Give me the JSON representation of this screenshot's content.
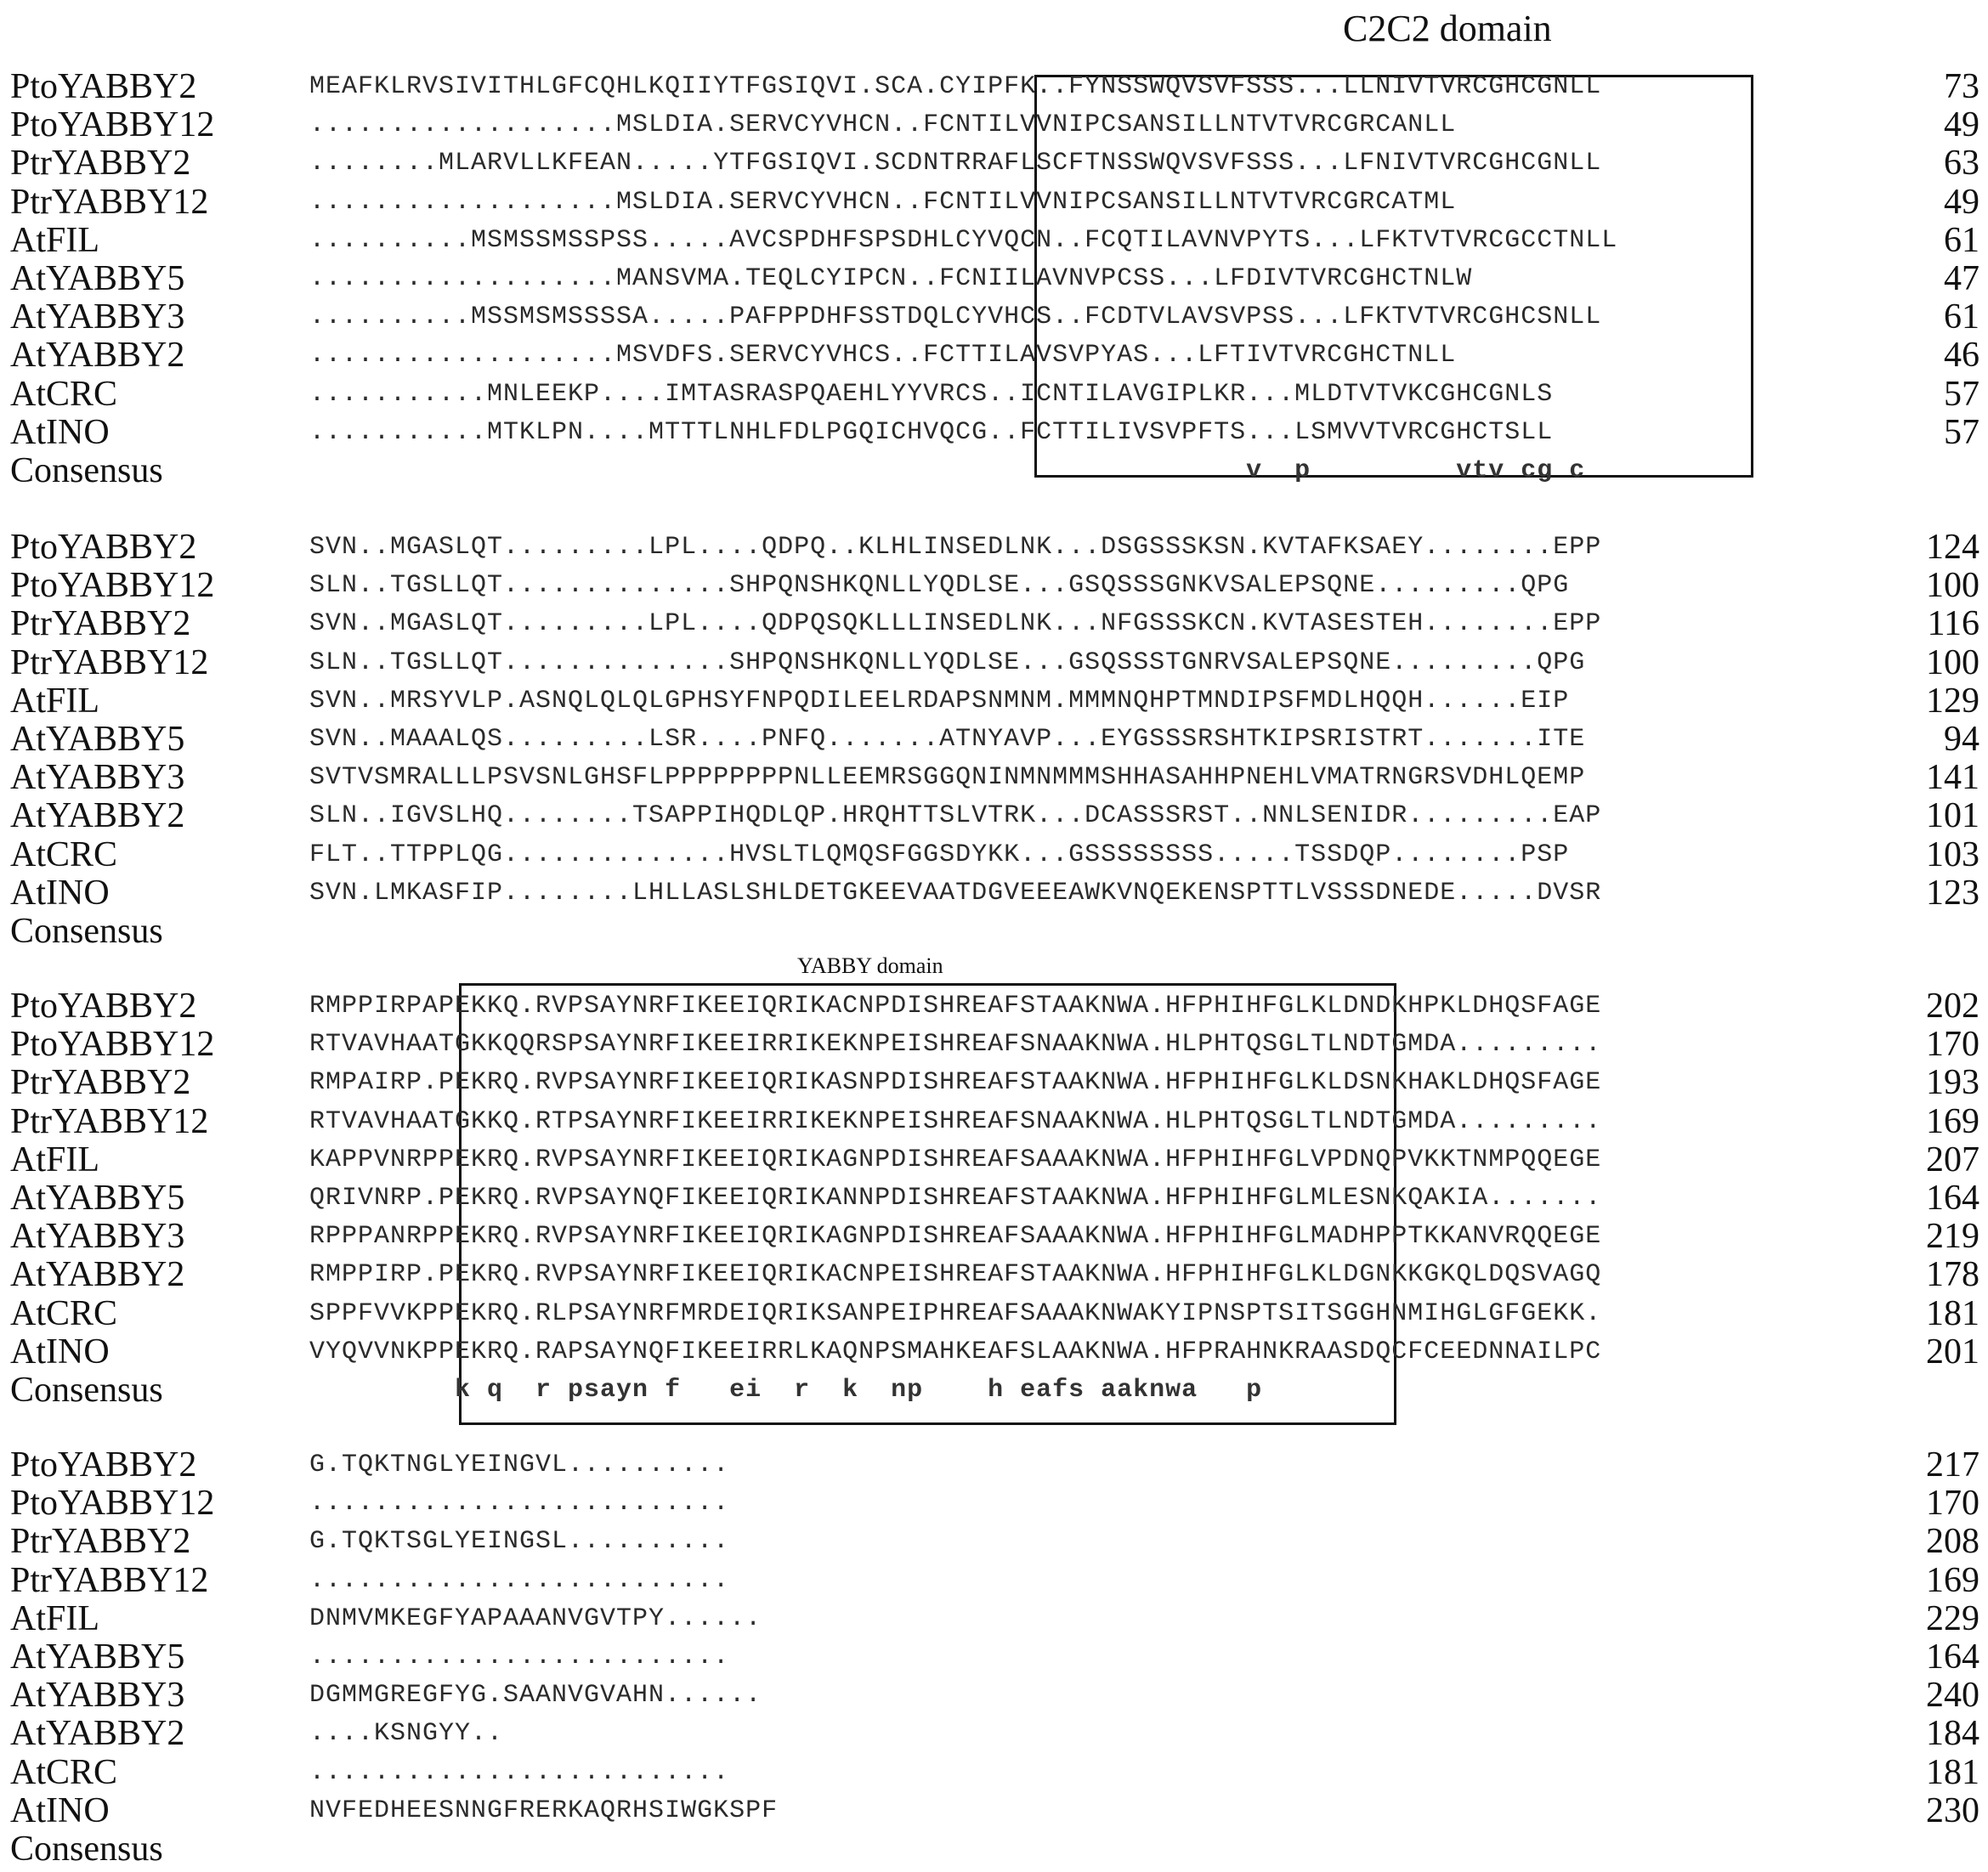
{
  "domains": {
    "c2c2_title": "C2C2 domain",
    "yabby_title": "YABBY domain"
  },
  "shading_colors": {
    "identical": "#1b1530",
    "high_similarity": "#e986b6",
    "low_similarity": "#84d4cc"
  },
  "blocks": [
    {
      "rows": [
        {
          "label": "PtoYABBY2",
          "seq": "MEAFKLRVSIVITHLGFCQHLKQIIYTFGSIQVI.SCA.CYIPFK..FYNSSWQVSVFSSS...LLNIVTVRCGHCGNLL",
          "end": "73"
        },
        {
          "label": "PtoYABBY12",
          "seq": "...................MSLDIA.SERVCYVHCN..FCNTILVVNIPCSANSILLNTVTVRCGRCANLL",
          "end": "49"
        },
        {
          "label": "PtrYABBY2",
          "seq": "........MLARVLLKFEAN.....YTFGSIQVI.SCDNTRRAFLSCFTNSSWQVSVFSSS...LFNIVTVRCGHCGNLL",
          "end": "63"
        },
        {
          "label": "PtrYABBY12",
          "seq": "...................MSLDIA.SERVCYVHCN..FCNTILVVNIPCSANSILLNTVTVRCGRCATML",
          "end": "49"
        },
        {
          "label": "AtFIL",
          "seq": "..........MSMSSMSSPSS.....AVCSPDHFSPSDHLCYVQCN..FCQTILAVNVPYTS...LFKTVTVRCGCCTNLL",
          "end": "61"
        },
        {
          "label": "AtYABBY5",
          "seq": "...................MANSVMA.TEQLCYIPCN..FCNIILAVNVPCSS...LFDIVTVRCGHCTNLW",
          "end": "47"
        },
        {
          "label": "AtYABBY3",
          "seq": "..........MSSMSMSSSSA.....PAFPPDHFSSTDQLCYVHCS..FCDTVLAVSVPSS...LFKTVTVRCGHCSNLL",
          "end": "61"
        },
        {
          "label": "AtYABBY2",
          "seq": "...................MSVDFS.SERVCYVHCS..FCTTILAVSVPYAS...LFTIVTVRCGHCTNLL",
          "end": "46"
        },
        {
          "label": "AtCRC",
          "seq": "...........MNLEEKP....IMTASRASPQAEHLYYVRCS..ICNTILAVGIPLKR...MLDTVTVKCGHCGNLS",
          "end": "57"
        },
        {
          "label": "AtINO",
          "seq": "...........MTKLPN....MTTTLNHLFDLPGQICHVQCG..FCTTILIVSVPFTS...LSMVVTVRCGHCTSLL",
          "end": "57"
        },
        {
          "label": "Consensus",
          "seq": "                                                          v  p         vtv cg c",
          "end": ""
        }
      ]
    },
    {
      "rows": [
        {
          "label": "PtoYABBY2",
          "seq": "SVN..MGASLQT.........LPL....QDPQ..KLHLINSEDLNK...DSGSSSKSN.KVTAFKSAEY........EPP",
          "end": "124"
        },
        {
          "label": "PtoYABBY12",
          "seq": "SLN..TGSLLQT..............SHPQNSHKQNLLYQDLSE...GSQSSSGNKVSALEPSQNE.........QPG",
          "end": "100"
        },
        {
          "label": "PtrYABBY2",
          "seq": "SVN..MGASLQT.........LPL....QDPQSQKLLLINSEDLNK...NFGSSSKCN.KVTASESTEH........EPP",
          "end": "116"
        },
        {
          "label": "PtrYABBY12",
          "seq": "SLN..TGSLLQT..............SHPQNSHKQNLLYQDLSE...GSQSSSTGNRVSALEPSQNE.........QPG",
          "end": "100"
        },
        {
          "label": "AtFIL",
          "seq": "SVN..MRSYVLP.ASNQLQLQLGPHSYFNPQDILEELRDAPSNMNM.MMMNQHPTMNDIPSFMDLHQQH......EIP",
          "end": "129"
        },
        {
          "label": "AtYABBY5",
          "seq": "SVN..MAAALQS.........LSR....PNFQ.......ATNYAVP...EYGSSSRSHTKIPSRISTRT.......ITE",
          "end": "94"
        },
        {
          "label": "AtYABBY3",
          "seq": "SVTVSMRALLLPSVSNLGHSFLPPPPPPPPNLLEEMRSGGQNINMNMMMSHHASAHHPNEHLVMATRNGRSVDHLQEMP",
          "end": "141"
        },
        {
          "label": "AtYABBY2",
          "seq": "SLN..IGVSLHQ........TSAPPIHQDLQP.HRQHTTSLVTRK...DCASSSRST..NNLSENIDR.........EAP",
          "end": "101"
        },
        {
          "label": "AtCRC",
          "seq": "FLT..TTPPLQG..............HVSLTLQMQSFGGSDYKK...GSSSSSSSS.....TSSDQP........PSP",
          "end": "103"
        },
        {
          "label": "AtINO",
          "seq": "SVN.LMKASFIP........LHLLASLSHLDETGKEEVAATDGVEEEAWKVNQEKENSPTTLVSSSDNEDE.....DVSR",
          "end": "123"
        },
        {
          "label": "Consensus",
          "seq": "",
          "end": ""
        }
      ]
    },
    {
      "rows": [
        {
          "label": "PtoYABBY2",
          "seq": "RMPPIRPAPEKKQ.RVPSAYNRFIKEEIQRIKACNPDISHREAFSTAAKNWA.HFPHIHFGLKLDNDKHPKLDHQSFAGE",
          "end": "202"
        },
        {
          "label": "PtoYABBY12",
          "seq": "RTVAVHAATGKKQQRSPSAYNRFIKEEIRRIKEKNPEISHREAFSNAAKNWA.HLPHTQSGLTLNDTGMDA.........",
          "end": "170"
        },
        {
          "label": "PtrYABBY2",
          "seq": "RMPAIRP.PEKRQ.RVPSAYNRFIKEEIQRIKASNPDISHREAFSTAAKNWA.HFPHIHFGLKLDSNKHAKLDHQSFAGE",
          "end": "193"
        },
        {
          "label": "PtrYABBY12",
          "seq": "RTVAVHAATGKKQ.RTPSAYNRFIKEEIRRIKEKNPEISHREAFSNAAKNWA.HLPHTQSGLTLNDTGMDA.........",
          "end": "169"
        },
        {
          "label": "AtFIL",
          "seq": "KAPPVNRPPEKRQ.RVPSAYNRFIKEEIQRIKAGNPDISHREAFSAAAKNWA.HFPHIHFGLVPDNQPVKKTNMPQQEGE",
          "end": "207"
        },
        {
          "label": "AtYABBY5",
          "seq": "QRIVNRP.PEKRQ.RVPSAYNQFIKEEIQRIKANNPDISHREAFSTAAKNWA.HFPHIHFGLMLESNKQAKIA.......",
          "end": "164"
        },
        {
          "label": "AtYABBY3",
          "seq": "RPPPANRPPEKRQ.RVPSAYNRFIKEEIQRIKAGNPDISHREAFSAAAKNWA.HFPHIHFGLMADHPPTKKANVRQQEGE",
          "end": "219"
        },
        {
          "label": "AtYABBY2",
          "seq": "RMPPIRP.PEKRQ.RVPSAYNRFIKEEIQRIKACNPEISHREAFSTAAKNWA.HFPHIHFGLKLDGNKKGKQLDQSVAGQ",
          "end": "178"
        },
        {
          "label": "AtCRC",
          "seq": "SPPFVVKPPEKRQ.RLPSAYNRFMRDEIQRIKSANPEIPHREAFSAAAKNWAKYIPNSPTSITSGGHNMIHGLGFGEKK.",
          "end": "181"
        },
        {
          "label": "AtINO",
          "seq": "VYQVVNKPPEKRQ.RAPSAYNQFIKEEIRRLKAQNPSMAHKEAFSLAAKNWA.HFPRAHNKRAASDQCFCEEDNNAILPC",
          "end": "201"
        },
        {
          "label": "Consensus",
          "seq": "         k q  r psayn f   ei  r  k  np    h eafs aaknwa   p",
          "end": ""
        }
      ]
    },
    {
      "rows": [
        {
          "label": "PtoYABBY2",
          "seq": "G.TQKTNGLYEINGVL..........",
          "end": "217"
        },
        {
          "label": "PtoYABBY12",
          "seq": "..........................",
          "end": "170"
        },
        {
          "label": "PtrYABBY2",
          "seq": "G.TQKTSGLYEINGSL..........",
          "end": "208"
        },
        {
          "label": "PtrYABBY12",
          "seq": "..........................",
          "end": "169"
        },
        {
          "label": "AtFIL",
          "seq": "DNMVMKEGFYAPAAANVGVTPY......",
          "end": "229"
        },
        {
          "label": "AtYABBY5",
          "seq": "..........................",
          "end": "164"
        },
        {
          "label": "AtYABBY3",
          "seq": "DGMMGREGFYG.SAANVGVAHN......",
          "end": "240"
        },
        {
          "label": "AtYABBY2",
          "seq": "....KSNGYY..",
          "end": "184"
        },
        {
          "label": "AtCRC",
          "seq": "..........................",
          "end": "181"
        },
        {
          "label": "AtINO",
          "seq": "NVFEDHEESNNGFRERKAQRHSIWGKSPF",
          "end": "230"
        },
        {
          "label": "Consensus",
          "seq": "",
          "end": ""
        }
      ]
    }
  ]
}
